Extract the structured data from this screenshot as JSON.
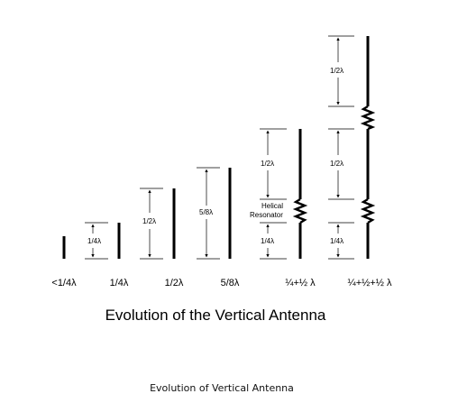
{
  "title": "Evolution of the Vertical Antenna",
  "footer_caption": "Evolution of Vertical Antenna",
  "antennas": [
    {
      "caption": "<1/4λ",
      "dims": []
    },
    {
      "caption": "1/4λ",
      "dims": [
        "1/4λ"
      ]
    },
    {
      "caption": "1/2λ",
      "dims": [
        "1/2λ"
      ]
    },
    {
      "caption": "5/8λ",
      "dims": [
        "5/8λ"
      ]
    },
    {
      "caption": "¼+½ λ",
      "dims": [
        "1/4λ",
        "1/2λ"
      ],
      "annotation": [
        "Helical",
        "Resonator"
      ]
    },
    {
      "caption": "¼+½+½ λ",
      "dims": [
        "1/4λ",
        "1/2λ",
        "1/2λ"
      ]
    }
  ],
  "colors": {
    "ink": "#000000",
    "background": "#ffffff"
  }
}
